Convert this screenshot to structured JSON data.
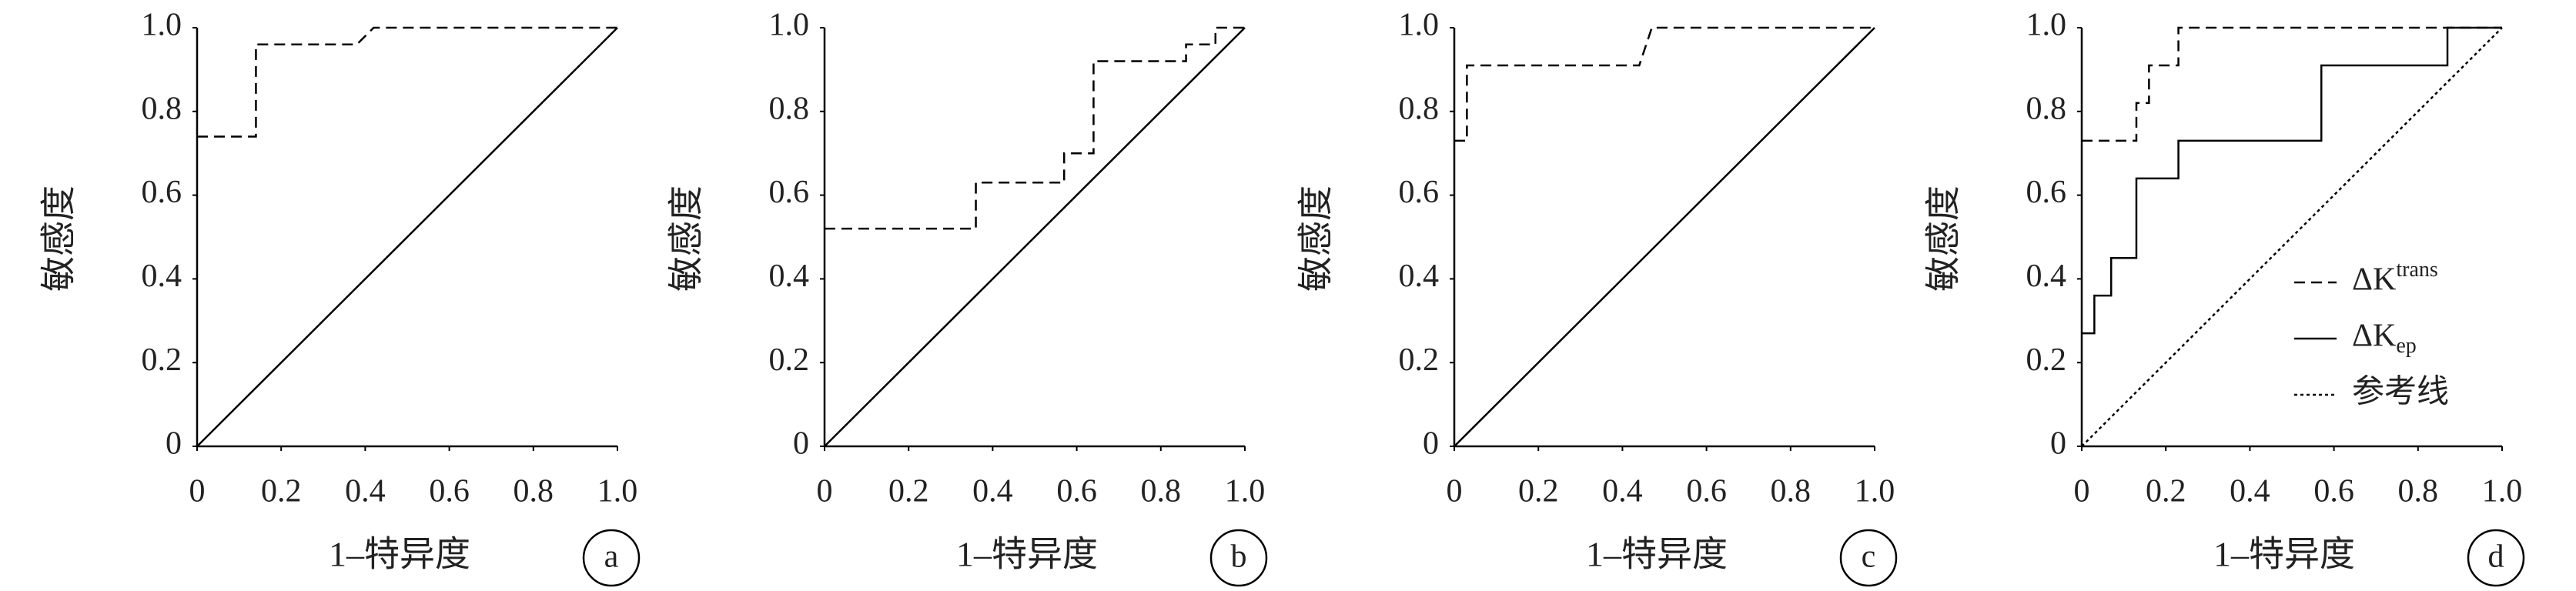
{
  "chart_data": [
    {
      "type": "line",
      "label": "a",
      "xlabel": "1–特异度",
      "ylabel": "敏感度",
      "xlim": [
        0,
        1
      ],
      "ylim": [
        0,
        1
      ],
      "xticks": [
        0,
        0.2,
        0.4,
        0.6,
        0.8,
        {
          "value": 1,
          "label": "1.0"
        }
      ],
      "yticks": [
        0,
        0.2,
        0.4,
        0.6,
        0.8,
        {
          "value": 1,
          "label": "1.0"
        }
      ],
      "series": [
        {
          "color": "#000000",
          "dash": "dashed",
          "x": [
            0,
            0.14,
            0.14,
            0.38,
            0.42,
            1
          ],
          "values": [
            0.74,
            0.74,
            0.96,
            0.96,
            1,
            1
          ]
        },
        {
          "color": "#000000",
          "dash": "solid",
          "x": [
            0,
            1
          ],
          "values": [
            0,
            1
          ]
        }
      ]
    },
    {
      "type": "line",
      "label": "b",
      "xlabel": "1–特异度",
      "ylabel": "敏感度",
      "xlim": [
        0,
        1
      ],
      "ylim": [
        0,
        1
      ],
      "xticks": [
        0,
        0.2,
        0.4,
        0.6,
        0.8,
        {
          "value": 1,
          "label": "1.0"
        }
      ],
      "yticks": [
        0,
        0.2,
        0.4,
        0.6,
        0.8,
        {
          "value": 1,
          "label": "1.0"
        }
      ],
      "series": [
        {
          "color": "#000000",
          "dash": "dashed",
          "x": [
            0,
            0.36,
            0.36,
            0.57,
            0.57,
            0.64,
            0.64,
            0.86,
            0.86,
            0.93,
            0.93,
            1
          ],
          "values": [
            0.52,
            0.52,
            0.63,
            0.63,
            0.7,
            0.7,
            0.92,
            0.92,
            0.96,
            0.96,
            1,
            1
          ]
        },
        {
          "color": "#000000",
          "dash": "solid",
          "x": [
            0,
            1
          ],
          "values": [
            0,
            1
          ]
        }
      ]
    },
    {
      "type": "line",
      "label": "c",
      "xlabel": "1–特异度",
      "ylabel": "敏感度",
      "xlim": [
        0,
        1
      ],
      "ylim": [
        0,
        1
      ],
      "xticks": [
        0,
        0.2,
        0.4,
        0.6,
        0.8,
        {
          "value": 1,
          "label": "1.0"
        }
      ],
      "yticks": [
        0,
        0.2,
        0.4,
        0.6,
        0.8,
        {
          "value": 1,
          "label": "1.0"
        }
      ],
      "series": [
        {
          "color": "#000000",
          "dash": "dashed",
          "x": [
            0,
            0.03,
            0.03,
            0.44,
            0.47,
            1
          ],
          "values": [
            0.73,
            0.73,
            0.91,
            0.91,
            1,
            1
          ]
        },
        {
          "color": "#000000",
          "dash": "solid",
          "x": [
            0,
            1
          ],
          "values": [
            0,
            1
          ]
        }
      ]
    },
    {
      "type": "line",
      "label": "d",
      "xlabel": "1–特异度",
      "ylabel": "敏感度",
      "xlim": [
        0,
        1
      ],
      "ylim": [
        0,
        1
      ],
      "legend": "lower right",
      "xticks": [
        0,
        0.2,
        0.4,
        0.6,
        0.8,
        {
          "value": 1,
          "label": "1.0"
        }
      ],
      "yticks": [
        0,
        0.2,
        0.4,
        0.6,
        0.8,
        {
          "value": 1,
          "label": "1.0"
        }
      ],
      "series": [
        {
          "name": "ΔK",
          "superscript": "trans",
          "color": "#000000",
          "dash": "dashed",
          "x": [
            0,
            0.13,
            0.13,
            0.16,
            0.16,
            0.23,
            0.23,
            1
          ],
          "values": [
            0.73,
            0.73,
            0.82,
            0.82,
            0.91,
            0.91,
            1,
            1
          ]
        },
        {
          "name": "ΔK",
          "subscript": "ep",
          "color": "#000000",
          "dash": "solid",
          "x": [
            0,
            0.03,
            0.03,
            0.07,
            0.07,
            0.13,
            0.13,
            0.23,
            0.23,
            0.57,
            0.57,
            0.87,
            0.87,
            1
          ],
          "values": [
            0.27,
            0.27,
            0.36,
            0.36,
            0.45,
            0.45,
            0.64,
            0.64,
            0.73,
            0.73,
            0.91,
            0.91,
            1,
            1
          ]
        },
        {
          "name": "参考线",
          "color": "#000000",
          "dash": "dotted",
          "x": [
            0,
            1
          ],
          "values": [
            0,
            1
          ]
        }
      ]
    }
  ]
}
